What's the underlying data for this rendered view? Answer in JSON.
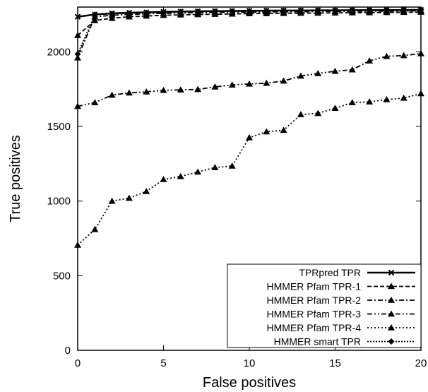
{
  "chart_data": {
    "type": "line",
    "title": "",
    "xlabel": "False positives",
    "ylabel": "True positives",
    "xlim": [
      0,
      20
    ],
    "ylim": [
      0,
      2300
    ],
    "xticks": [
      0,
      5,
      10,
      15,
      20
    ],
    "yticks": [
      0,
      500,
      1000,
      1500,
      2000
    ],
    "grid": false,
    "legend_position": "bottom-right",
    "series": [
      {
        "name": "TPRpred TPR",
        "marker": "x",
        "dash": "solid",
        "color": "#000000",
        "x": [
          0,
          1,
          2,
          3,
          4,
          5,
          6,
          7,
          8,
          9,
          10,
          11,
          12,
          13,
          14,
          15,
          16,
          17,
          18,
          19,
          20
        ],
        "y": [
          2235,
          2250,
          2258,
          2262,
          2265,
          2268,
          2270,
          2272,
          2273,
          2274,
          2275,
          2276,
          2277,
          2277,
          2278,
          2278,
          2279,
          2279,
          2280,
          2280,
          2281
        ]
      },
      {
        "name": "HMMER Pfam TPR-1",
        "marker": "triangle",
        "dash": "dashed",
        "color": "#000000",
        "x": [
          0,
          1,
          2,
          3,
          4,
          5,
          6,
          7,
          8,
          9,
          10,
          11,
          12,
          13,
          14,
          15,
          16,
          17,
          18,
          19,
          20
        ],
        "y": [
          2110,
          2210,
          2225,
          2235,
          2240,
          2245,
          2248,
          2250,
          2252,
          2254,
          2256,
          2257,
          2258,
          2259,
          2260,
          2261,
          2262,
          2263,
          2264,
          2265,
          2266
        ]
      },
      {
        "name": "HMMER Pfam TPR-2",
        "marker": "triangle",
        "dash": "dash-dot",
        "color": "#000000",
        "x": [
          0,
          1,
          2,
          3,
          4,
          5,
          6,
          7,
          8,
          9,
          10,
          11,
          12,
          13,
          14,
          15,
          16,
          17,
          18,
          19,
          20
        ],
        "y": [
          1960,
          2235,
          2245,
          2250,
          2255,
          2258,
          2260,
          2262,
          2264,
          2265,
          2266,
          2267,
          2268,
          2269,
          2270,
          2271,
          2272,
          2272,
          2273,
          2274,
          2275
        ]
      },
      {
        "name": "HMMER Pfam TPR-3",
        "marker": "triangle",
        "dash": "dash-dot-dot",
        "color": "#000000",
        "x": [
          0,
          1,
          2,
          3,
          4,
          5,
          6,
          7,
          8,
          9,
          10,
          11,
          12,
          13,
          14,
          15,
          16,
          17,
          18,
          19,
          20
        ],
        "y": [
          1635,
          1660,
          1710,
          1725,
          1732,
          1742,
          1745,
          1748,
          1765,
          1778,
          1785,
          1790,
          1805,
          1838,
          1855,
          1870,
          1880,
          1940,
          1970,
          1975,
          1988
        ]
      },
      {
        "name": "HMMER Pfam TPR-4",
        "marker": "triangle",
        "dash": "dotted",
        "color": "#000000",
        "x": [
          0,
          1,
          2,
          3,
          4,
          5,
          6,
          7,
          8,
          9,
          10,
          11,
          12,
          13,
          14,
          15,
          16,
          17,
          18,
          19,
          20
        ],
        "y": [
          705,
          810,
          1000,
          1020,
          1065,
          1145,
          1165,
          1195,
          1225,
          1235,
          1425,
          1465,
          1475,
          1580,
          1588,
          1622,
          1660,
          1665,
          1680,
          1690,
          1720
        ]
      },
      {
        "name": "HMMER smart TPR",
        "marker": "diamond",
        "dash": "dense-dotted",
        "color": "#000000",
        "x": [
          0,
          1,
          2,
          3,
          4,
          5,
          6,
          7,
          8,
          9,
          10,
          11,
          12,
          13,
          14,
          15,
          16,
          17,
          18,
          19,
          20
        ],
        "y": [
          1985,
          2250,
          2255,
          2258,
          2262,
          2265,
          2268,
          2270,
          2271,
          2272,
          2273,
          2274,
          2275,
          2276,
          2277,
          2278,
          2279,
          2280,
          2281,
          2282,
          2283
        ]
      }
    ]
  }
}
